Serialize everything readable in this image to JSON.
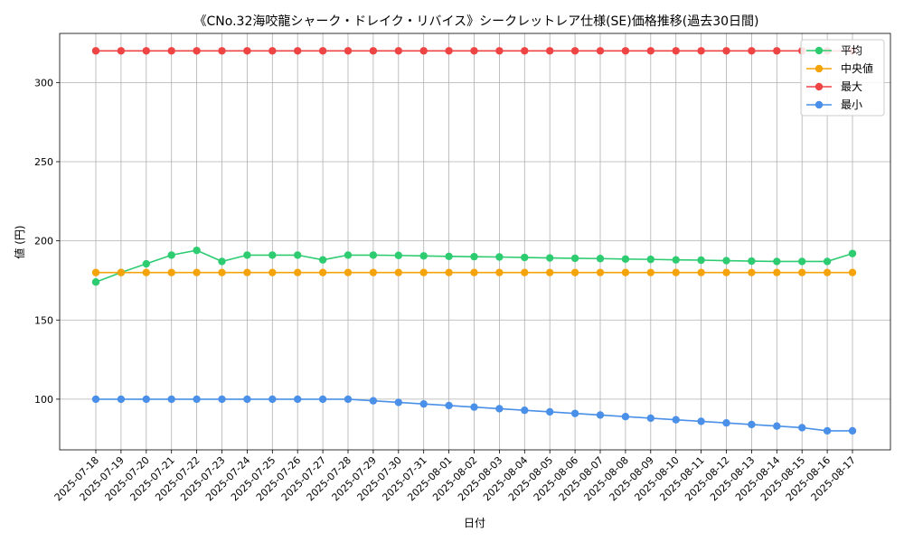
{
  "chart_data": {
    "type": "line",
    "title": "《CNo.32海咬龍シャーク・ドレイク・リバイス》シークレットレア仕様(SE)価格推移(過去30日間)",
    "xlabel": "日付",
    "ylabel": "値 (円)",
    "ylim": [
      68,
      331
    ],
    "yticks": [
      100,
      150,
      200,
      250,
      300
    ],
    "grid": true,
    "legend_position": "top-right",
    "categories": [
      "2025-07-18",
      "2025-07-19",
      "2025-07-20",
      "2025-07-21",
      "2025-07-22",
      "2025-07-23",
      "2025-07-24",
      "2025-07-25",
      "2025-07-26",
      "2025-07-27",
      "2025-07-28",
      "2025-07-29",
      "2025-07-30",
      "2025-07-31",
      "2025-08-01",
      "2025-08-02",
      "2025-08-03",
      "2025-08-04",
      "2025-08-05",
      "2025-08-06",
      "2025-08-07",
      "2025-08-08",
      "2025-08-09",
      "2025-08-10",
      "2025-08-11",
      "2025-08-12",
      "2025-08-13",
      "2025-08-14",
      "2025-08-15",
      "2025-08-16",
      "2025-08-17"
    ],
    "series": [
      {
        "name": "平均",
        "color": "#2ecc71",
        "values": [
          174,
          180,
          185.5,
          191,
          194,
          187,
          191,
          191,
          191,
          188,
          191,
          191,
          190.8,
          190.5,
          190.2,
          190,
          189.8,
          189.5,
          189.2,
          189,
          188.8,
          188.5,
          188.3,
          188,
          187.8,
          187.5,
          187.2,
          187,
          187,
          187,
          192
        ]
      },
      {
        "name": "中央値",
        "color": "#f5a30a",
        "values": [
          180,
          180,
          180,
          180,
          180,
          180,
          180,
          180,
          180,
          180,
          180,
          180,
          180,
          180,
          180,
          180,
          180,
          180,
          180,
          180,
          180,
          180,
          180,
          180,
          180,
          180,
          180,
          180,
          180,
          180,
          180
        ]
      },
      {
        "name": "最大",
        "color": "#ef4444",
        "values": [
          320,
          320,
          320,
          320,
          320,
          320,
          320,
          320,
          320,
          320,
          320,
          320,
          320,
          320,
          320,
          320,
          320,
          320,
          320,
          320,
          320,
          320,
          320,
          320,
          320,
          320,
          320,
          320,
          320,
          320,
          320
        ]
      },
      {
        "name": "最小",
        "color": "#4a90e8",
        "values": [
          100,
          100,
          100,
          100,
          100,
          100,
          100,
          100,
          100,
          100,
          100,
          99,
          98,
          97,
          96,
          95,
          94,
          93,
          92,
          91,
          90,
          89,
          88,
          87,
          86,
          85,
          84,
          83,
          82,
          80,
          80
        ]
      }
    ]
  }
}
